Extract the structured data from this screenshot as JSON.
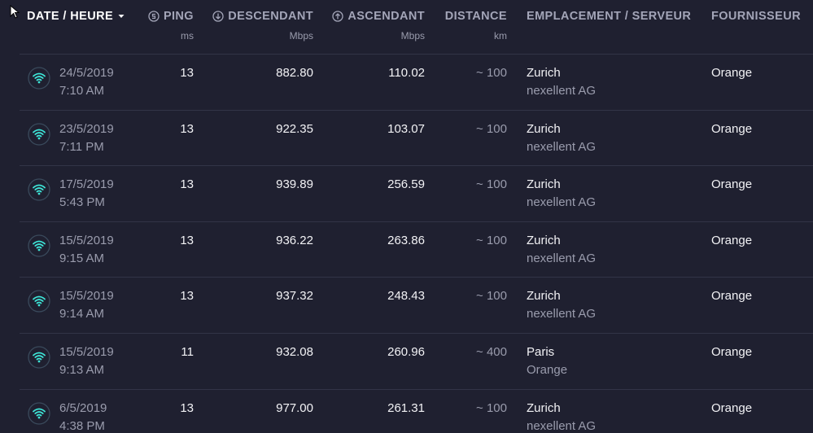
{
  "header": {
    "columns": [
      {
        "label": "DATE / HEURE"
      },
      {
        "label": "PING",
        "unit": "ms"
      },
      {
        "label": "DESCENDANT",
        "unit": "Mbps"
      },
      {
        "label": "ASCENDANT",
        "unit": "Mbps"
      },
      {
        "label": "DISTANCE",
        "unit": "km"
      },
      {
        "label": "EMPLACEMENT / SERVEUR"
      },
      {
        "label": "FOURNISSEUR"
      }
    ]
  },
  "rows": [
    {
      "date": "24/5/2019",
      "time": "7:10 AM",
      "ping": "13",
      "download": "882.80",
      "upload": "110.02",
      "distance": "~ 100",
      "location": "Zurich",
      "server": "nexellent AG",
      "provider": "Orange"
    },
    {
      "date": "23/5/2019",
      "time": "7:11 PM",
      "ping": "13",
      "download": "922.35",
      "upload": "103.07",
      "distance": "~ 100",
      "location": "Zurich",
      "server": "nexellent AG",
      "provider": "Orange"
    },
    {
      "date": "17/5/2019",
      "time": "5:43 PM",
      "ping": "13",
      "download": "939.89",
      "upload": "256.59",
      "distance": "~ 100",
      "location": "Zurich",
      "server": "nexellent AG",
      "provider": "Orange"
    },
    {
      "date": "15/5/2019",
      "time": "9:15 AM",
      "ping": "13",
      "download": "936.22",
      "upload": "263.86",
      "distance": "~ 100",
      "location": "Zurich",
      "server": "nexellent AG",
      "provider": "Orange"
    },
    {
      "date": "15/5/2019",
      "time": "9:14 AM",
      "ping": "13",
      "download": "937.32",
      "upload": "248.43",
      "distance": "~ 100",
      "location": "Zurich",
      "server": "nexellent AG",
      "provider": "Orange"
    },
    {
      "date": "15/5/2019",
      "time": "9:13 AM",
      "ping": "11",
      "download": "932.08",
      "upload": "260.96",
      "distance": "~ 400",
      "location": "Paris",
      "server": "Orange",
      "provider": "Orange"
    },
    {
      "date": "6/5/2019",
      "time": "4:38 PM",
      "ping": "13",
      "download": "977.00",
      "upload": "261.31",
      "distance": "~ 100",
      "location": "Zurich",
      "server": "nexellent AG",
      "provider": "Orange"
    }
  ]
}
